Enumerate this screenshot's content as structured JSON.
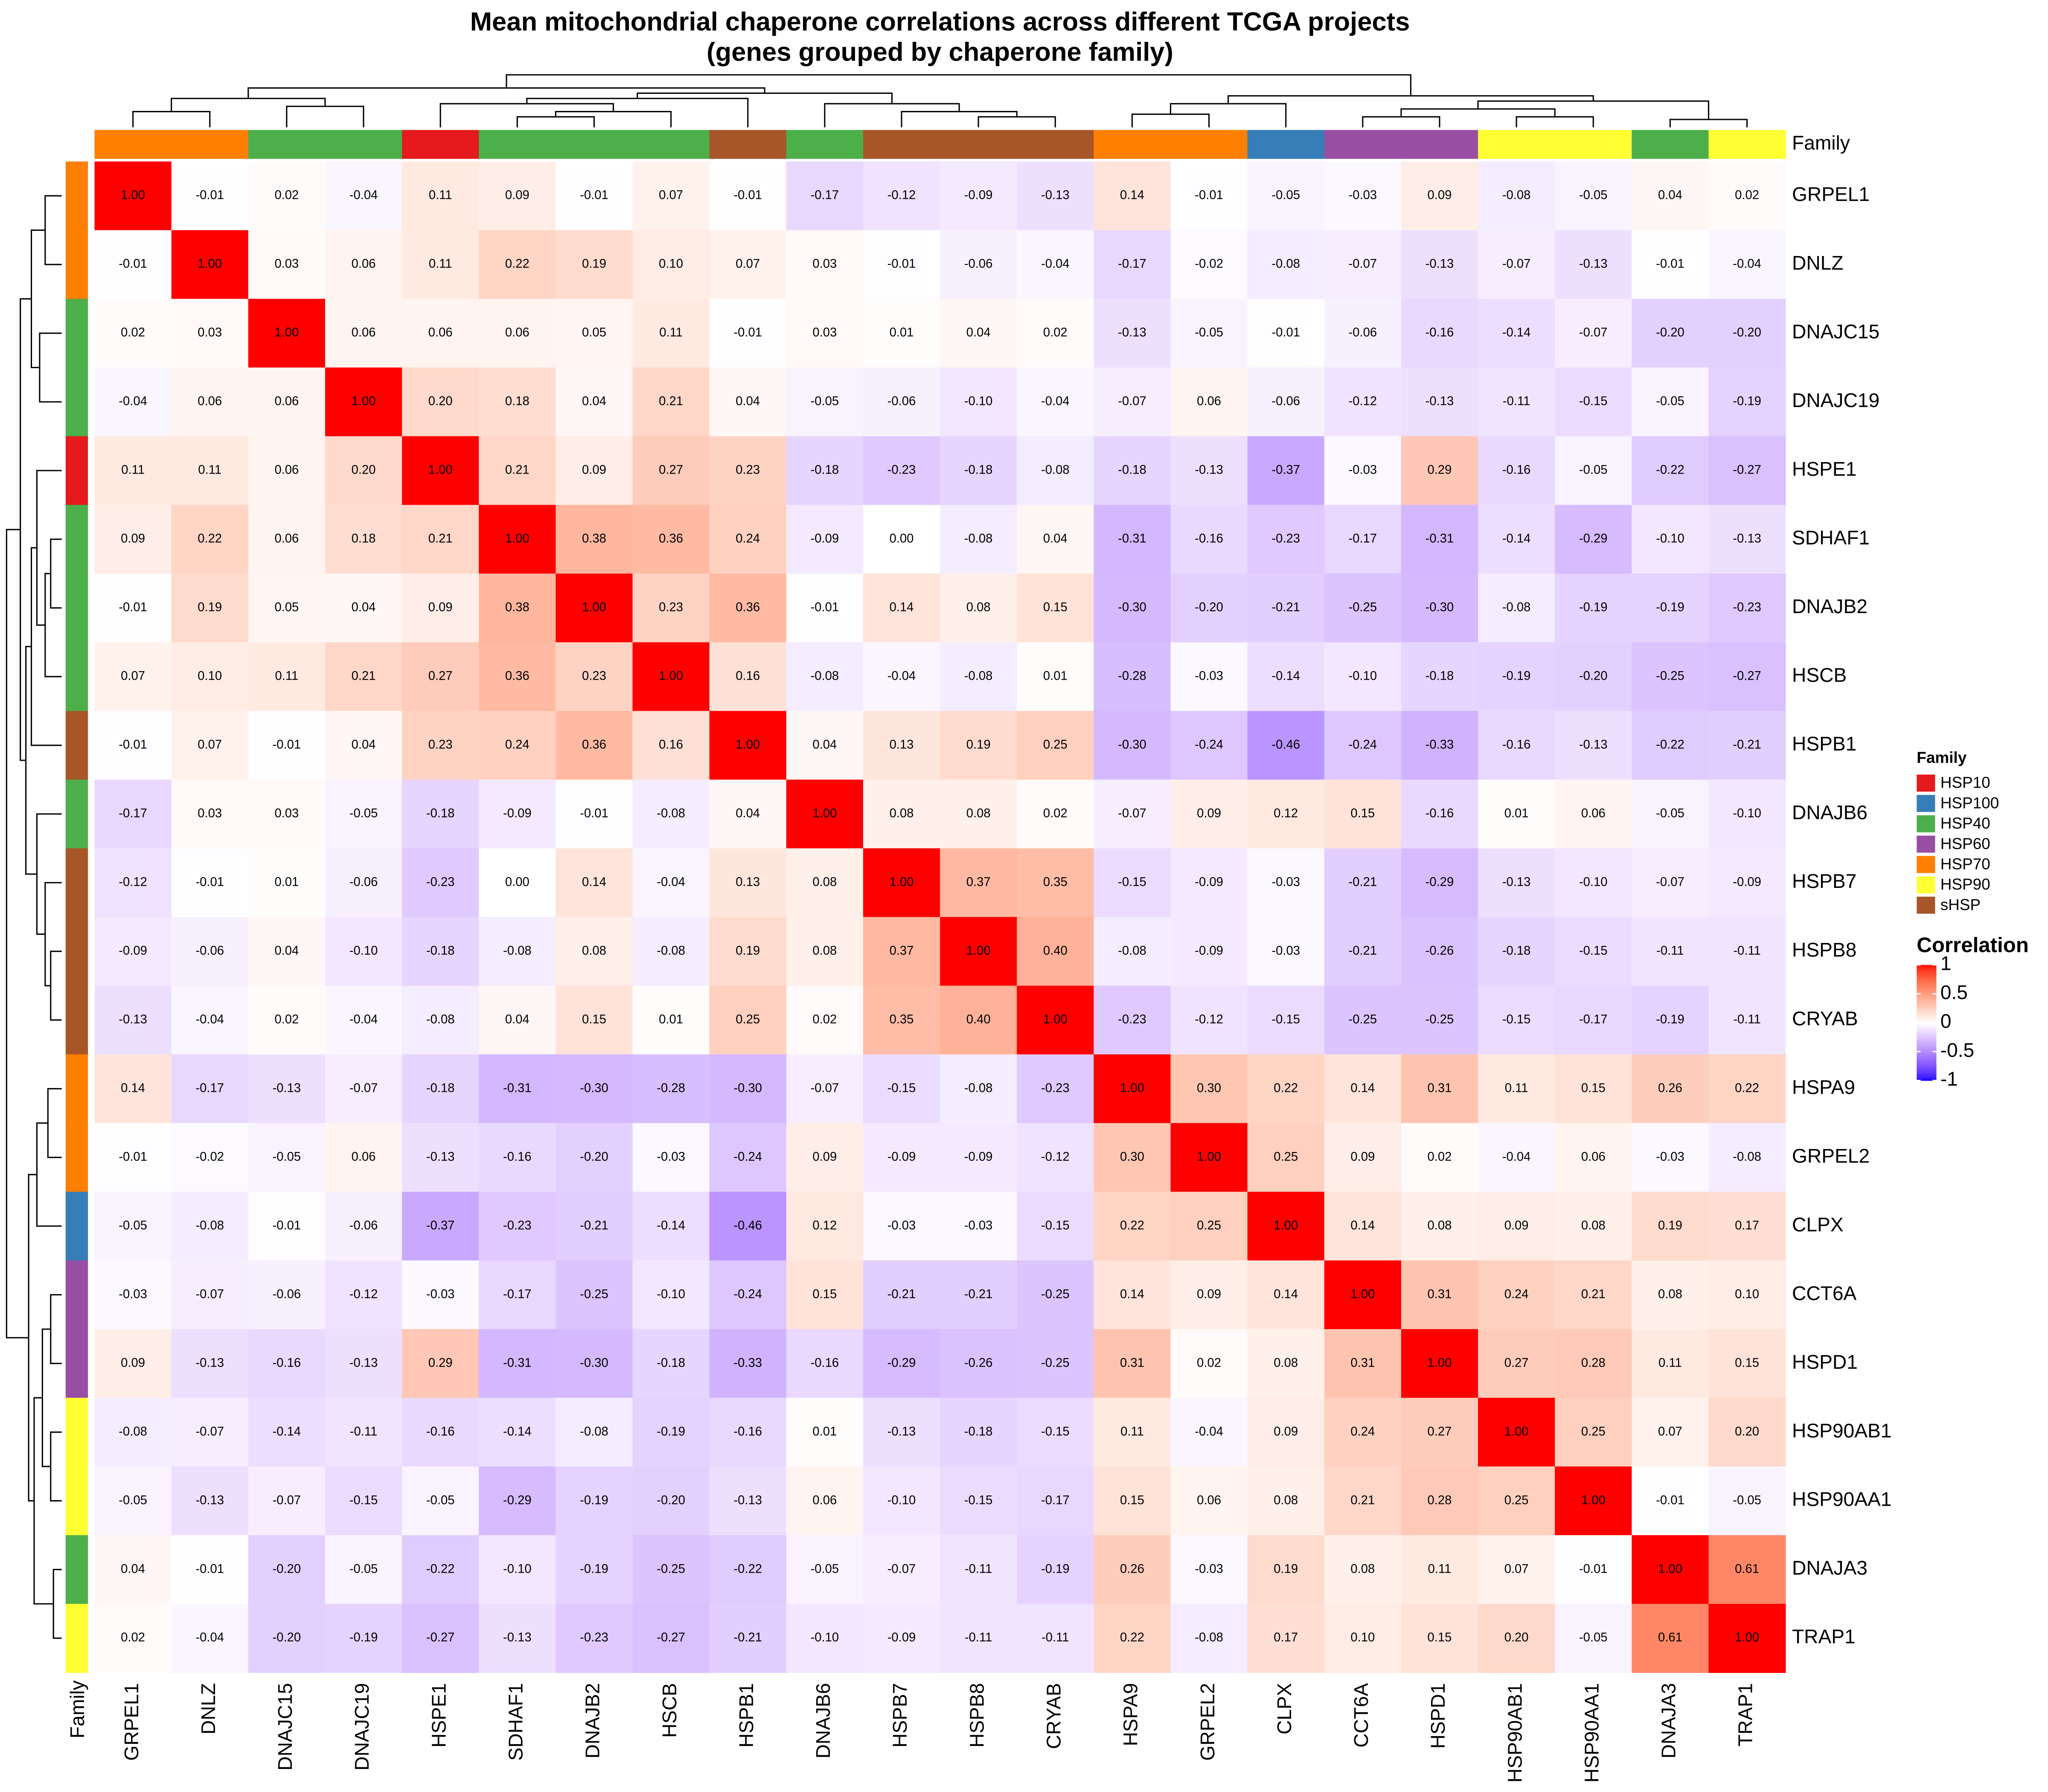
{
  "chart_data": {
    "type": "heatmap",
    "title": "Mean mitochondrial chaperone correlations across different TCGA projects",
    "subtitle": "(genes grouped by chaperone family)",
    "annotation_title": "Family",
    "legend_title": "Correlation",
    "categories": [
      "GRPEL1",
      "DNLZ",
      "DNAJC15",
      "DNAJC19",
      "HSPE1",
      "SDHAF1",
      "DNAJB2",
      "HSCB",
      "HSPB1",
      "DNAJB6",
      "HSPB7",
      "HSPB8",
      "CRYAB",
      "HSPA9",
      "GRPEL2",
      "CLPX",
      "CCT6A",
      "HSPD1",
      "HSP90AB1",
      "HSP90AA1",
      "DNAJA3",
      "TRAP1"
    ],
    "family": [
      "HSP70",
      "HSP70",
      "HSP40",
      "HSP40",
      "HSP10",
      "HSP40",
      "HSP40",
      "HSP40",
      "sHSP",
      "HSP40",
      "sHSP",
      "sHSP",
      "sHSP",
      "HSP70",
      "HSP70",
      "HSP100",
      "HSP60",
      "HSP60",
      "HSP90",
      "HSP90",
      "HSP40",
      "HSP90"
    ],
    "families": [
      {
        "name": "HSP10",
        "color": "#e41a1c"
      },
      {
        "name": "HSP100",
        "color": "#377eb8"
      },
      {
        "name": "HSP40",
        "color": "#4daf4a"
      },
      {
        "name": "HSP60",
        "color": "#984ea3"
      },
      {
        "name": "HSP70",
        "color": "#ff7f00"
      },
      {
        "name": "HSP90",
        "color": "#ffff33"
      },
      {
        "name": "sHSP",
        "color": "#a65628"
      }
    ],
    "colors": [
      "#0000ff",
      "#ffffff",
      "#ff0000"
    ],
    "clim": [
      -1,
      1
    ],
    "cticks": [
      1,
      0.5,
      0,
      -0.5,
      -1
    ],
    "values": [
      [
        1.0,
        -0.01,
        0.02,
        -0.04,
        0.11,
        0.09,
        -0.01,
        0.07,
        -0.01,
        -0.17,
        -0.12,
        -0.09,
        -0.13,
        0.14,
        -0.01,
        -0.05,
        -0.03,
        0.09,
        -0.08,
        -0.05,
        0.04,
        0.02
      ],
      [
        -0.01,
        1.0,
        0.03,
        0.06,
        0.11,
        0.22,
        0.19,
        0.1,
        0.07,
        0.03,
        -0.01,
        -0.06,
        -0.04,
        -0.17,
        -0.02,
        -0.08,
        -0.07,
        -0.13,
        -0.07,
        -0.13,
        -0.01,
        -0.04
      ],
      [
        0.02,
        0.03,
        1.0,
        0.06,
        0.06,
        0.06,
        0.05,
        0.11,
        -0.01,
        0.03,
        0.01,
        0.04,
        0.02,
        -0.13,
        -0.05,
        -0.01,
        -0.06,
        -0.16,
        -0.14,
        -0.07,
        -0.2,
        -0.2
      ],
      [
        -0.04,
        0.06,
        0.06,
        1.0,
        0.2,
        0.18,
        0.04,
        0.21,
        0.04,
        -0.05,
        -0.06,
        -0.1,
        -0.04,
        -0.07,
        0.06,
        -0.06,
        -0.12,
        -0.13,
        -0.11,
        -0.15,
        -0.05,
        -0.19
      ],
      [
        0.11,
        0.11,
        0.06,
        0.2,
        1.0,
        0.21,
        0.09,
        0.27,
        0.23,
        -0.18,
        -0.23,
        -0.18,
        -0.08,
        -0.18,
        -0.13,
        -0.37,
        -0.03,
        0.29,
        -0.16,
        -0.05,
        -0.22,
        -0.27
      ],
      [
        0.09,
        0.22,
        0.06,
        0.18,
        0.21,
        1.0,
        0.38,
        0.36,
        0.24,
        -0.09,
        0.0,
        -0.08,
        0.04,
        -0.31,
        -0.16,
        -0.23,
        -0.17,
        -0.31,
        -0.14,
        -0.29,
        -0.1,
        -0.13
      ],
      [
        -0.01,
        0.19,
        0.05,
        0.04,
        0.09,
        0.38,
        1.0,
        0.23,
        0.36,
        -0.01,
        0.14,
        0.08,
        0.15,
        -0.3,
        -0.2,
        -0.21,
        -0.25,
        -0.3,
        -0.08,
        -0.19,
        -0.19,
        -0.23
      ],
      [
        0.07,
        0.1,
        0.11,
        0.21,
        0.27,
        0.36,
        0.23,
        1.0,
        0.16,
        -0.08,
        -0.04,
        -0.08,
        0.01,
        -0.28,
        -0.03,
        -0.14,
        -0.1,
        -0.18,
        -0.19,
        -0.2,
        -0.25,
        -0.27
      ],
      [
        -0.01,
        0.07,
        -0.01,
        0.04,
        0.23,
        0.24,
        0.36,
        0.16,
        1.0,
        0.04,
        0.13,
        0.19,
        0.25,
        -0.3,
        -0.24,
        -0.46,
        -0.24,
        -0.33,
        -0.16,
        -0.13,
        -0.22,
        -0.21
      ],
      [
        -0.17,
        0.03,
        0.03,
        -0.05,
        -0.18,
        -0.09,
        -0.01,
        -0.08,
        0.04,
        1.0,
        0.08,
        0.08,
        0.02,
        -0.07,
        0.09,
        0.12,
        0.15,
        -0.16,
        0.01,
        0.06,
        -0.05,
        -0.1
      ],
      [
        -0.12,
        -0.01,
        0.01,
        -0.06,
        -0.23,
        0.0,
        0.14,
        -0.04,
        0.13,
        0.08,
        1.0,
        0.37,
        0.35,
        -0.15,
        -0.09,
        -0.03,
        -0.21,
        -0.29,
        -0.13,
        -0.1,
        -0.07,
        -0.09
      ],
      [
        -0.09,
        -0.06,
        0.04,
        -0.1,
        -0.18,
        -0.08,
        0.08,
        -0.08,
        0.19,
        0.08,
        0.37,
        1.0,
        0.4,
        -0.08,
        -0.09,
        -0.03,
        -0.21,
        -0.26,
        -0.18,
        -0.15,
        -0.11,
        -0.11
      ],
      [
        -0.13,
        -0.04,
        0.02,
        -0.04,
        -0.08,
        0.04,
        0.15,
        0.01,
        0.25,
        0.02,
        0.35,
        0.4,
        1.0,
        -0.23,
        -0.12,
        -0.15,
        -0.25,
        -0.25,
        -0.15,
        -0.17,
        -0.19,
        -0.11
      ],
      [
        0.14,
        -0.17,
        -0.13,
        -0.07,
        -0.18,
        -0.31,
        -0.3,
        -0.28,
        -0.3,
        -0.07,
        -0.15,
        -0.08,
        -0.23,
        1.0,
        0.3,
        0.22,
        0.14,
        0.31,
        0.11,
        0.15,
        0.26,
        0.22
      ],
      [
        -0.01,
        -0.02,
        -0.05,
        0.06,
        -0.13,
        -0.16,
        -0.2,
        -0.03,
        -0.24,
        0.09,
        -0.09,
        -0.09,
        -0.12,
        0.3,
        1.0,
        0.25,
        0.09,
        0.02,
        -0.04,
        0.06,
        -0.03,
        -0.08
      ],
      [
        -0.05,
        -0.08,
        -0.01,
        -0.06,
        -0.37,
        -0.23,
        -0.21,
        -0.14,
        -0.46,
        0.12,
        -0.03,
        -0.03,
        -0.15,
        0.22,
        0.25,
        1.0,
        0.14,
        0.08,
        0.09,
        0.08,
        0.19,
        0.17
      ],
      [
        -0.03,
        -0.07,
        -0.06,
        -0.12,
        -0.03,
        -0.17,
        -0.25,
        -0.1,
        -0.24,
        0.15,
        -0.21,
        -0.21,
        -0.25,
        0.14,
        0.09,
        0.14,
        1.0,
        0.31,
        0.24,
        0.21,
        0.08,
        0.1
      ],
      [
        0.09,
        -0.13,
        -0.16,
        -0.13,
        0.29,
        -0.31,
        -0.3,
        -0.18,
        -0.33,
        -0.16,
        -0.29,
        -0.26,
        -0.25,
        0.31,
        0.02,
        0.08,
        0.31,
        1.0,
        0.27,
        0.28,
        0.11,
        0.15
      ],
      [
        -0.08,
        -0.07,
        -0.14,
        -0.11,
        -0.16,
        -0.14,
        -0.08,
        -0.19,
        -0.16,
        0.01,
        -0.13,
        -0.18,
        -0.15,
        0.11,
        -0.04,
        0.09,
        0.24,
        0.27,
        1.0,
        0.25,
        0.07,
        0.2
      ],
      [
        -0.05,
        -0.13,
        -0.07,
        -0.15,
        -0.05,
        -0.29,
        -0.19,
        -0.2,
        -0.13,
        0.06,
        -0.1,
        -0.15,
        -0.17,
        0.15,
        0.06,
        0.08,
        0.21,
        0.28,
        0.25,
        1.0,
        -0.01,
        -0.05
      ],
      [
        0.04,
        -0.01,
        -0.2,
        -0.05,
        -0.22,
        -0.1,
        -0.19,
        -0.25,
        -0.22,
        -0.05,
        -0.07,
        -0.11,
        -0.19,
        0.26,
        -0.03,
        0.19,
        0.08,
        0.11,
        0.07,
        -0.01,
        1.0,
        0.61
      ],
      [
        0.02,
        -0.04,
        -0.2,
        -0.19,
        -0.27,
        -0.13,
        -0.23,
        -0.27,
        -0.21,
        -0.1,
        -0.09,
        -0.11,
        -0.11,
        0.22,
        -0.08,
        0.17,
        0.1,
        0.15,
        0.2,
        -0.05,
        0.61,
        1.0
      ]
    ],
    "value_labels": [
      [
        "1.00",
        "-0.01",
        "0.02",
        "-0.04",
        "0.11",
        "0.09",
        "-0.01",
        "0.07",
        "-0.01",
        "-0.17",
        "-0.12",
        "-0.09",
        "-0.13",
        "0.14",
        "-0.01",
        "-0.05",
        "-0.03",
        "0.09",
        "-0.08",
        "-0.05",
        "0.04",
        "0.02"
      ],
      [
        "-0.01",
        "1.00",
        "0.03",
        "0.06",
        "0.11",
        "0.22",
        "0.19",
        "0.10",
        "0.07",
        "0.03",
        "-0.01",
        "-0.06",
        "-0.04",
        "-0.17",
        "-0.02",
        "-0.08",
        "-0.07",
        "-0.13",
        "-0.07",
        "-0.13",
        "-0.01",
        "-0.04"
      ],
      [
        "0.02",
        "0.03",
        "1.00",
        "0.06",
        "0.06",
        "0.06",
        "0.05",
        "0.11",
        "-0.01",
        "0.03",
        "0.01",
        "0.04",
        "0.02",
        "-0.13",
        "-0.05",
        "-0.01",
        "-0.06",
        "-0.16",
        "-0.14",
        "-0.07",
        "-0.20",
        "-0.20"
      ],
      [
        "-0.04",
        "0.06",
        "0.06",
        "1.00",
        "0.20",
        "0.18",
        "0.04",
        "0.21",
        "0.04",
        "-0.05",
        "-0.06",
        "-0.10",
        "-0.04",
        "-0.07",
        "0.06",
        "-0.06",
        "-0.12",
        "-0.13",
        "-0.11",
        "-0.15",
        "-0.05",
        "-0.19"
      ],
      [
        "0.11",
        "0.11",
        "0.06",
        "0.20",
        "1.00",
        "0.21",
        "0.09",
        "0.27",
        "0.23",
        "-0.18",
        "-0.23",
        "-0.18",
        "-0.08",
        "-0.18",
        "-0.13",
        "-0.37",
        "-0.03",
        "0.29",
        "-0.16",
        "-0.05",
        "-0.22",
        "-0.27"
      ],
      [
        "0.09",
        "0.22",
        "0.06",
        "0.18",
        "0.21",
        "1.00",
        "0.38",
        "0.36",
        "0.24",
        "-0.09",
        "0.00",
        "-0.08",
        "0.04",
        "-0.31",
        "-0.16",
        "-0.23",
        "-0.17",
        "-0.31",
        "-0.14",
        "-0.29",
        "-0.10",
        "-0.13"
      ],
      [
        "-0.01",
        "0.19",
        "0.05",
        "0.04",
        "0.09",
        "0.38",
        "1.00",
        "0.23",
        "0.36",
        "-0.01",
        "0.14",
        "0.08",
        "0.15",
        "-0.30",
        "-0.20",
        "-0.21",
        "-0.25",
        "-0.30",
        "-0.08",
        "-0.19",
        "-0.19",
        "-0.23"
      ],
      [
        "0.07",
        "0.10",
        "0.11",
        "0.21",
        "0.27",
        "0.36",
        "0.23",
        "1.00",
        "0.16",
        "-0.08",
        "-0.04",
        "-0.08",
        "0.01",
        "-0.28",
        "-0.03",
        "-0.14",
        "-0.10",
        "-0.18",
        "-0.19",
        "-0.20",
        "-0.25",
        "-0.27"
      ],
      [
        "-0.01",
        "0.07",
        "-0.01",
        "0.04",
        "0.23",
        "0.24",
        "0.36",
        "0.16",
        "1.00",
        "0.04",
        "0.13",
        "0.19",
        "0.25",
        "-0.30",
        "-0.24",
        "-0.46",
        "-0.24",
        "-0.33",
        "-0.16",
        "-0.13",
        "-0.22",
        "-0.21"
      ],
      [
        "-0.17",
        "0.03",
        "0.03",
        "-0.05",
        "-0.18",
        "-0.09",
        "-0.01",
        "-0.08",
        "0.04",
        "1.00",
        "0.08",
        "0.08",
        "0.02",
        "-0.07",
        "0.09",
        "0.12",
        "0.15",
        "-0.16",
        "0.01",
        "0.06",
        "-0.05",
        "-0.10"
      ],
      [
        "-0.12",
        "-0.01",
        "0.01",
        "-0.06",
        "-0.23",
        "0.00",
        "0.14",
        "-0.04",
        "0.13",
        "0.08",
        "1.00",
        "0.37",
        "0.35",
        "-0.15",
        "-0.09",
        "-0.03",
        "-0.21",
        "-0.29",
        "-0.13",
        "-0.10",
        "-0.07",
        "-0.09"
      ],
      [
        "-0.09",
        "-0.06",
        "0.04",
        "-0.10",
        "-0.18",
        "-0.08",
        "0.08",
        "-0.08",
        "0.19",
        "0.08",
        "0.37",
        "1.00",
        "0.40",
        "-0.08",
        "-0.09",
        "-0.03",
        "-0.21",
        "-0.26",
        "-0.18",
        "-0.15",
        "-0.11",
        "-0.11"
      ],
      [
        "-0.13",
        "-0.04",
        "0.02",
        "-0.04",
        "-0.08",
        "0.04",
        "0.15",
        "0.01",
        "0.25",
        "0.02",
        "0.35",
        "0.40",
        "1.00",
        "-0.23",
        "-0.12",
        "-0.15",
        "-0.25",
        "-0.25",
        "-0.15",
        "-0.17",
        "-0.19",
        "-0.11"
      ],
      [
        "0.14",
        "-0.17",
        "-0.13",
        "-0.07",
        "-0.18",
        "-0.31",
        "-0.30",
        "-0.28",
        "-0.30",
        "-0.07",
        "-0.15",
        "-0.08",
        "-0.23",
        "1.00",
        "0.30",
        "0.22",
        "0.14",
        "0.31",
        "0.11",
        "0.15",
        "0.26",
        "0.22"
      ],
      [
        "-0.01",
        "-0.02",
        "-0.05",
        "0.06",
        "-0.13",
        "-0.16",
        "-0.20",
        "-0.03",
        "-0.24",
        "0.09",
        "-0.09",
        "-0.09",
        "-0.12",
        "0.30",
        "1.00",
        "0.25",
        "0.09",
        "0.02",
        "-0.04",
        "0.06",
        "-0.03",
        "-0.08"
      ],
      [
        "-0.05",
        "-0.08",
        "-0.01",
        "-0.06",
        "-0.37",
        "-0.23",
        "-0.21",
        "-0.14",
        "-0.46",
        "0.12",
        "-0.03",
        "-0.03",
        "-0.15",
        "0.22",
        "0.25",
        "1.00",
        "0.14",
        "0.08",
        "0.09",
        "0.08",
        "0.19",
        "0.17"
      ],
      [
        "-0.03",
        "-0.07",
        "-0.06",
        "-0.12",
        "-0.03",
        "-0.17",
        "-0.25",
        "-0.10",
        "-0.24",
        "0.15",
        "-0.21",
        "-0.21",
        "-0.25",
        "0.14",
        "0.09",
        "0.14",
        "1.00",
        "0.31",
        "0.24",
        "0.21",
        "0.08",
        "0.10"
      ],
      [
        "0.09",
        "-0.13",
        "-0.16",
        "-0.13",
        "0.29",
        "-0.31",
        "-0.30",
        "-0.18",
        "-0.33",
        "-0.16",
        "-0.29",
        "-0.26",
        "-0.25",
        "0.31",
        "0.02",
        "0.08",
        "0.31",
        "1.00",
        "0.27",
        "0.28",
        "0.11",
        "0.15"
      ],
      [
        "-0.08",
        "-0.07",
        "-0.14",
        "-0.11",
        "-0.16",
        "-0.14",
        "-0.08",
        "-0.19",
        "-0.16",
        "0.01",
        "-0.13",
        "-0.18",
        "-0.15",
        "0.11",
        "-0.04",
        "0.09",
        "0.24",
        "0.27",
        "1.00",
        "0.25",
        "0.07",
        "0.20"
      ],
      [
        "-0.05",
        "-0.13",
        "-0.07",
        "-0.15",
        "-0.05",
        "-0.29",
        "-0.19",
        "-0.20",
        "-0.13",
        "0.06",
        "-0.10",
        "-0.15",
        "-0.17",
        "0.15",
        "0.06",
        "0.08",
        "0.21",
        "0.28",
        "0.25",
        "1.00",
        "-0.01",
        "-0.05"
      ],
      [
        "0.04",
        "-0.01",
        "-0.20",
        "-0.05",
        "-0.22",
        "-0.10",
        "-0.19",
        "-0.25",
        "-0.22",
        "-0.05",
        "-0.07",
        "-0.11",
        "-0.19",
        "0.26",
        "-0.03",
        "0.19",
        "0.08",
        "0.11",
        "0.07",
        "-0.01",
        "1.00",
        "0.61"
      ],
      [
        "0.02",
        "-0.04",
        "-0.20",
        "-0.19",
        "-0.27",
        "-0.13",
        "-0.23",
        "-0.27",
        "-0.21",
        "-0.10",
        "-0.09",
        "-0.11",
        "-0.11",
        "0.22",
        "-0.08",
        "0.17",
        "0.10",
        "0.15",
        "0.20",
        "-0.05",
        "0.61",
        "1.00"
      ]
    ]
  }
}
